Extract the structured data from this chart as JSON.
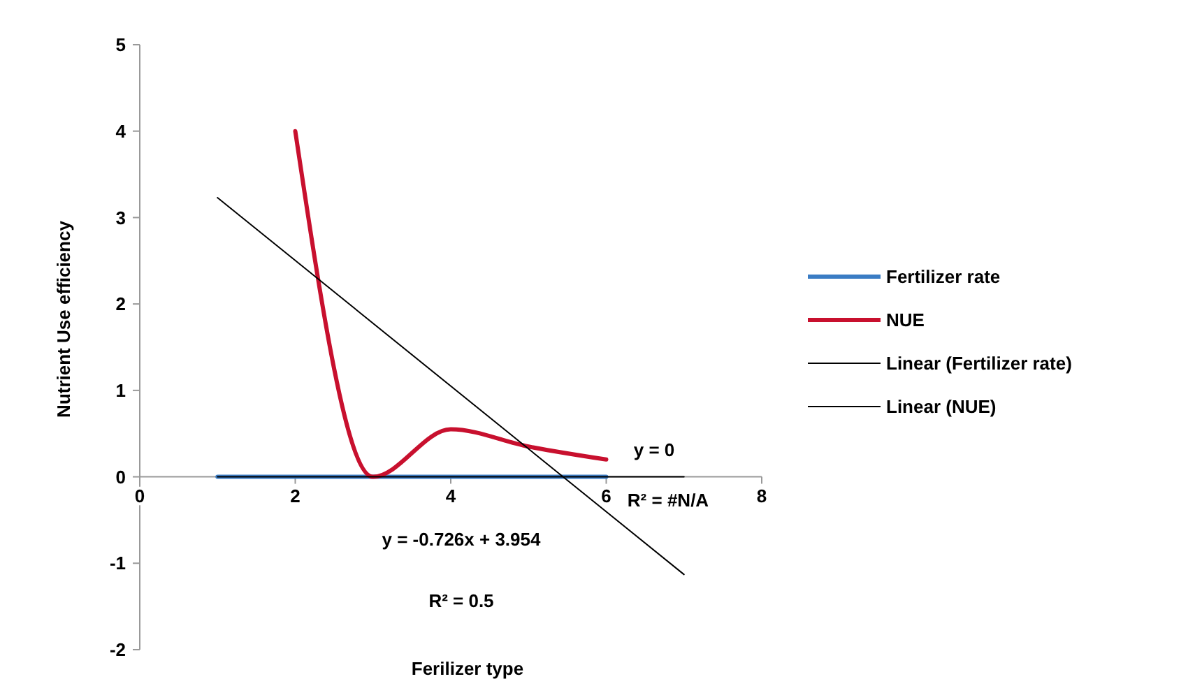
{
  "chart_data": {
    "type": "line",
    "xlabel": "Ferilizer type",
    "ylabel": "Nutrient Use efficiency",
    "xlim": [
      0,
      8
    ],
    "ylim": [
      -2,
      5
    ],
    "xticks": [
      0,
      2,
      4,
      6,
      8
    ],
    "yticks": [
      -2,
      -1,
      0,
      1,
      2,
      3,
      4,
      5
    ],
    "grid": false,
    "legend": "right",
    "marker": "none",
    "series": [
      {
        "name": "Fertilizer rate",
        "color": "#3a7cc4",
        "x": [
          1,
          2,
          3,
          4,
          5,
          6
        ],
        "values": [
          0,
          0,
          0,
          0,
          0,
          0
        ]
      },
      {
        "name": "NUE",
        "color": "#c8102e",
        "x": [
          2,
          3,
          4,
          5,
          6
        ],
        "values": [
          4,
          0,
          0.55,
          0.35,
          0.2
        ]
      },
      {
        "name": "Linear (Fertilizer rate)",
        "type": "line",
        "color": "#000000",
        "x": [
          1,
          7
        ],
        "values": [
          0,
          0
        ]
      },
      {
        "name": "Linear (NUE)",
        "type": "line",
        "color": "#000000",
        "x": [
          1,
          7
        ],
        "values": [
          3.23,
          -1.13
        ]
      }
    ],
    "annotations": [
      "y = 0",
      "R² = #N/A",
      "y = -0.726x + 3.954",
      "R² = 0.5"
    ]
  }
}
